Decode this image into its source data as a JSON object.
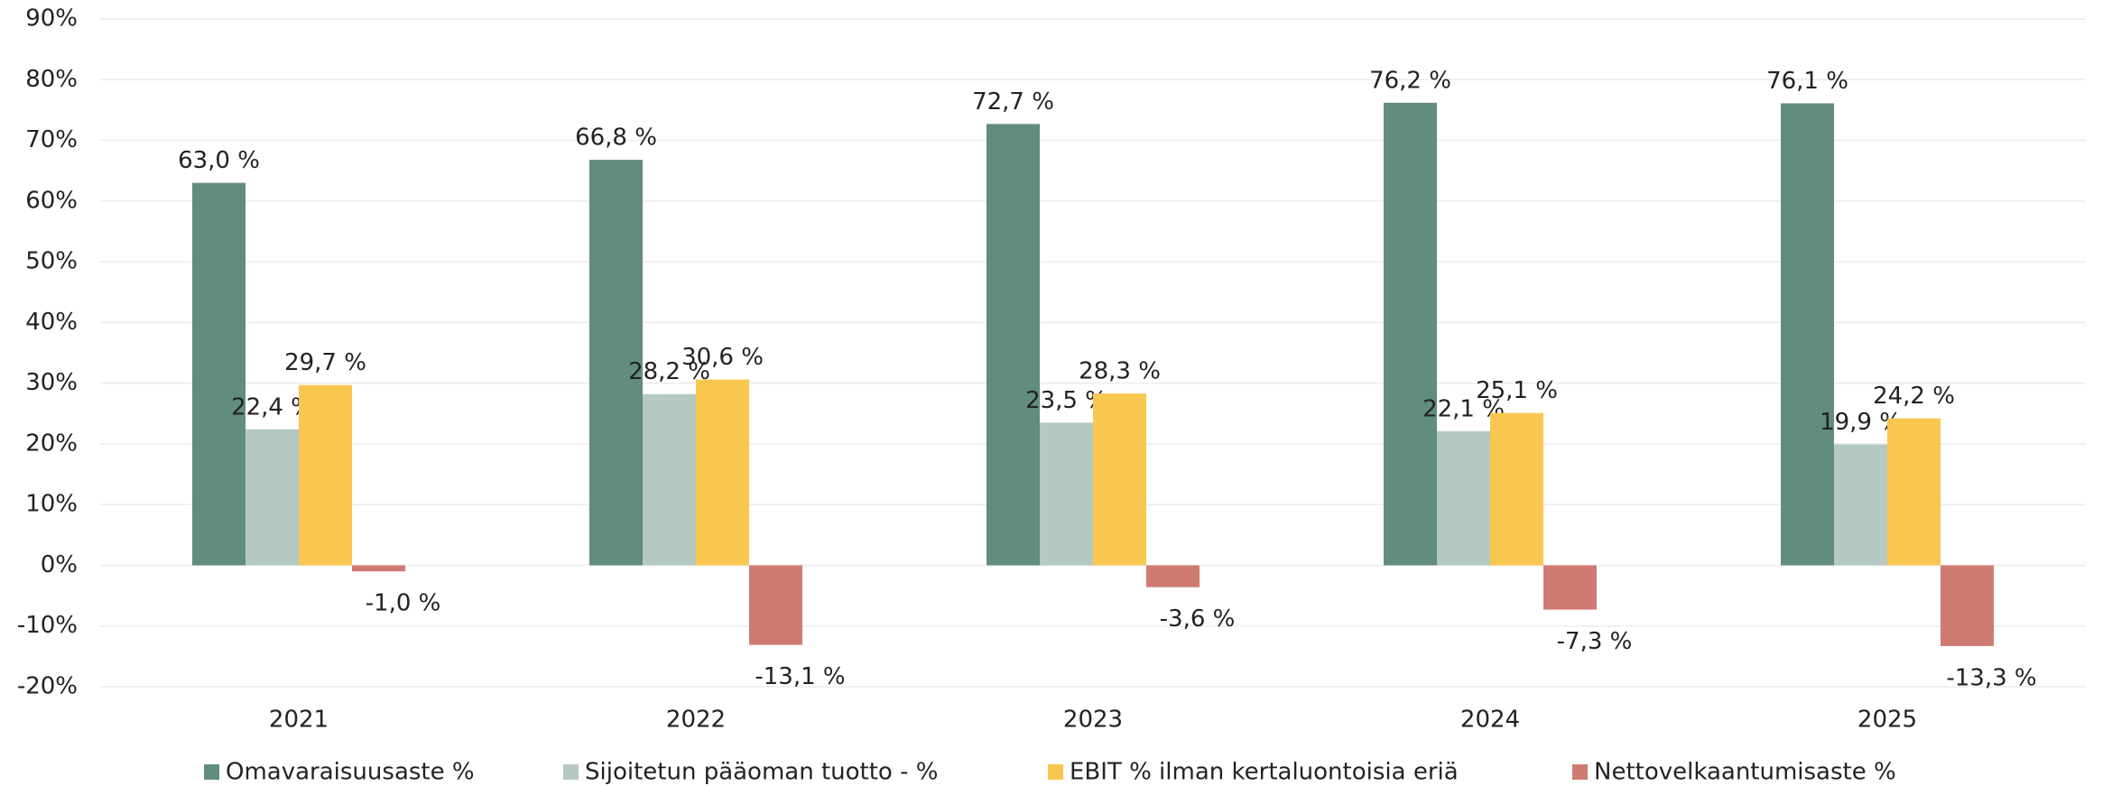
{
  "chart_data": {
    "type": "bar",
    "categories": [
      "2021",
      "2022",
      "2023",
      "2024",
      "2025"
    ],
    "series": [
      {
        "name": "Omavaraisuusaste %",
        "color": "#628c80",
        "values": [
          63.0,
          66.8,
          72.7,
          76.2,
          76.1
        ],
        "value_labels": [
          "63,0 %",
          "66,8 %",
          "72,7 %",
          "76,2 %",
          "76,1 %"
        ]
      },
      {
        "name": "Sijoitetun pääoman tuotto - %",
        "color": "#b3c9c2",
        "values": [
          22.4,
          28.2,
          23.5,
          22.1,
          19.9
        ],
        "value_labels": [
          "22,4 %",
          "28,2 %",
          "23,5 %",
          "22,1 %",
          "19,9 %"
        ]
      },
      {
        "name": "EBIT % ilman kertaluontoisia eriä",
        "color": "#f9c74f",
        "values": [
          29.7,
          30.6,
          28.3,
          25.1,
          24.2
        ],
        "value_labels": [
          "29,7 %",
          "30,6 %",
          "28,3 %",
          "25,1 %",
          "24,2 %"
        ]
      },
      {
        "name": "Nettovelkaantumisaste %",
        "color": "#cf7b72",
        "values": [
          -1.0,
          -13.1,
          -3.6,
          -7.3,
          -13.3
        ],
        "value_labels": [
          "-1,0 %",
          "-13,1 %",
          "-3,6 %",
          "-7,3 %",
          "-13,3 %"
        ]
      }
    ],
    "ylim": [
      -20,
      90
    ],
    "yticks": [
      {
        "value": -20,
        "label": "-20%"
      },
      {
        "value": -10,
        "label": "-10%"
      },
      {
        "value": 0,
        "label": "0%"
      },
      {
        "value": 10,
        "label": "10%"
      },
      {
        "value": 20,
        "label": "20%"
      },
      {
        "value": 30,
        "label": "30%"
      },
      {
        "value": 40,
        "label": "40%"
      },
      {
        "value": 50,
        "label": "50%"
      },
      {
        "value": 60,
        "label": "60%"
      },
      {
        "value": 70,
        "label": "70%"
      },
      {
        "value": 80,
        "label": "80%"
      },
      {
        "value": 90,
        "label": "90%"
      }
    ],
    "grid": true,
    "legend": "bottom"
  }
}
